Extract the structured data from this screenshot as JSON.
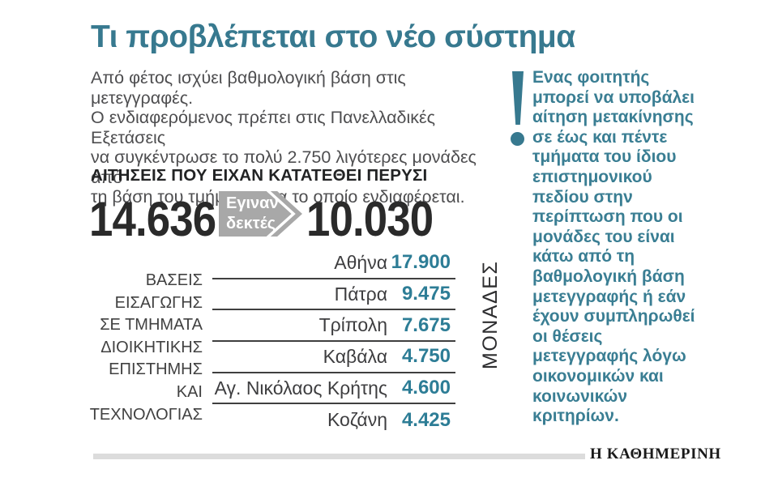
{
  "colors": {
    "accent_teal": "#37798f",
    "value_teal": "#2d7d96",
    "note_teal": "#3a7e93",
    "arrow_gray": "#a8a8a8",
    "footer_rule_gray": "#dcdcdc",
    "dark_text": "#2a2a2a"
  },
  "title": "Τι προβλέπεται στο νέο σύστημα",
  "intro": "Από φέτος ισχύει βαθμολογική βάση στις μετεγγραφές.\nΟ ενδιαφερόμενος πρέπει στις Πανελλαδικές Εξετάσεις\nνα συγκέντρωσε το πολύ 2.750 λιγότερες μονάδες από\nτη βάση του τμήματος για το οποίο ενδιαφέρεται.",
  "note": {
    "icon": "exclamation-icon",
    "text": "Ενας φοιτητής\nμπορεί να υποβάλει\nαίτηση μετακίνησης\nσε έως και πέντε\nτμήματα του ίδιου\nεπιστημονικού\nπεδίου στην\nπερίπτωση που οι\nμονάδες του είναι\nκάτω από τη\nβαθμολογική βάση\nμετεγγραφής ή εάν\nέχουν συμπληρωθεί\nοι θέσεις\nμετεγγραφής λόγω\nοικονομικών και\nκοινωνικών\nκριτηρίων."
  },
  "applications": {
    "heading": "ΑΙΤΗΣΕΙΣ ΠΟΥ ΕΙΧΑΝ ΚΑΤΑΤΕΘΕΙ ΠΕΡΥΣΙ",
    "submitted": "14.636",
    "arrow_label": "Εγιναν\nδεκτές",
    "accepted": "10.030"
  },
  "bases_table": {
    "label": "ΒΑΣΕΙΣ\nΕΙΣΑΓΩΓΗΣ\nΣΕ ΤΜΗΜΑΤΑ\nΔΙΟΙΚΗΤΙΚΗΣ\nΕΠΙΣΤΗΜΗΣ\nΚΑΙ\nΤΕΧΝΟΛΟΓΙΑΣ",
    "unit_label": "ΜΟΝΑΔΕΣ",
    "rows": [
      {
        "name": "Αθήνα",
        "value": "17.900"
      },
      {
        "name": "Πάτρα",
        "value": "9.475"
      },
      {
        "name": "Τρίπολη",
        "value": "7.675"
      },
      {
        "name": "Καβάλα",
        "value": "4.750"
      },
      {
        "name": "Αγ. Νικόλαος Κρήτης",
        "value": "4.600"
      },
      {
        "name": "Κοζάνη",
        "value": "4.425"
      }
    ]
  },
  "footer": {
    "newspaper": "Η ΚΑΘΗΜΕΡΙΝΗ"
  },
  "chart_data": {
    "type": "table",
    "title": "ΒΑΣΕΙΣ ΕΙΣΑΓΩΓΗΣ ΣΕ ΤΜΗΜΑΤΑ ΔΙΟΙΚΗΤΙΚΗΣ ΕΠΙΣΤΗΜΗΣ ΚΑΙ ΤΕΧΝΟΛΟΓΙΑΣ",
    "unit": "ΜΟΝΑΔΕΣ",
    "categories": [
      "Αθήνα",
      "Πάτρα",
      "Τρίπολη",
      "Καβάλα",
      "Αγ. Νικόλαος Κρήτης",
      "Κοζάνη"
    ],
    "values": [
      17900,
      9475,
      7675,
      4750,
      4600,
      4425
    ],
    "annotations": {
      "applications_heading": "ΑΙΤΗΣΕΙΣ ΠΟΥ ΕΙΧΑΝ ΚΑΤΑΤΕΘΕΙ ΠΕΡΥΣΙ",
      "applications_submitted": 14636,
      "applications_accepted": 10030,
      "accepted_arrow_label": "Εγιναν δεκτές",
      "max_points_difference": 2750
    },
    "legend_position": "none",
    "grid": false
  }
}
